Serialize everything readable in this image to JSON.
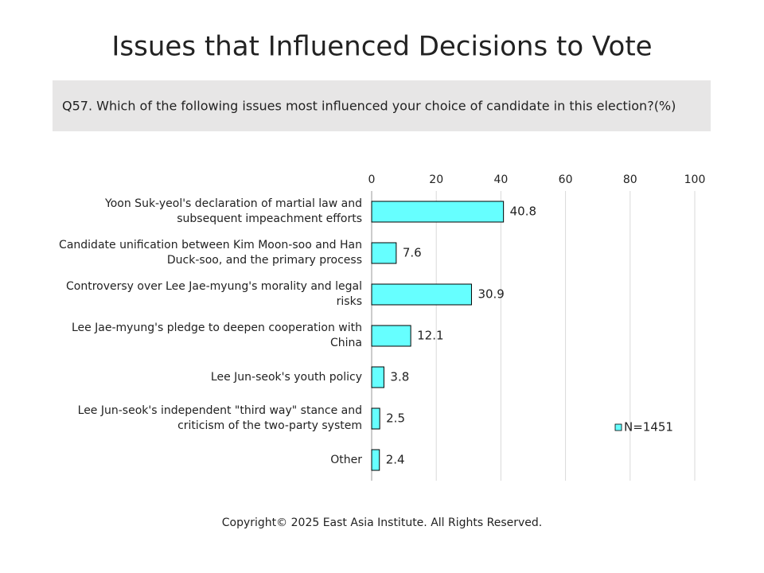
{
  "chart_data": {
    "type": "bar",
    "orientation": "horizontal",
    "title": "Issues that Influenced Decisions to Vote",
    "subtitle": "Q57. Which of the following issues most influenced your choice of candidate in this election?(%)",
    "categories": [
      "Yoon Suk-yeol's declaration of martial law and subsequent impeachment efforts",
      "Candidate unification between Kim Moon-soo and Han Duck-soo, and the primary process",
      "Controversy over Lee Jae-myung's morality and legal risks",
      "Lee Jae-myung's pledge to deepen cooperation with China",
      "Lee Jun-seok's youth policy",
      "Lee Jun-seok's independent \"third way\" stance and criticism of the two-party system",
      "Other"
    ],
    "series": [
      {
        "name": "N=1451",
        "color": "#66ffff",
        "values": [
          40.8,
          7.6,
          30.9,
          12.1,
          3.8,
          2.5,
          2.4
        ]
      }
    ],
    "xlim": [
      0,
      100
    ],
    "xticks": [
      0,
      20,
      40,
      60,
      80,
      100
    ],
    "grid": true,
    "legend": "lower right",
    "footer": "Copyright© 2025 East Asia Institute. All Rights Reserved."
  }
}
